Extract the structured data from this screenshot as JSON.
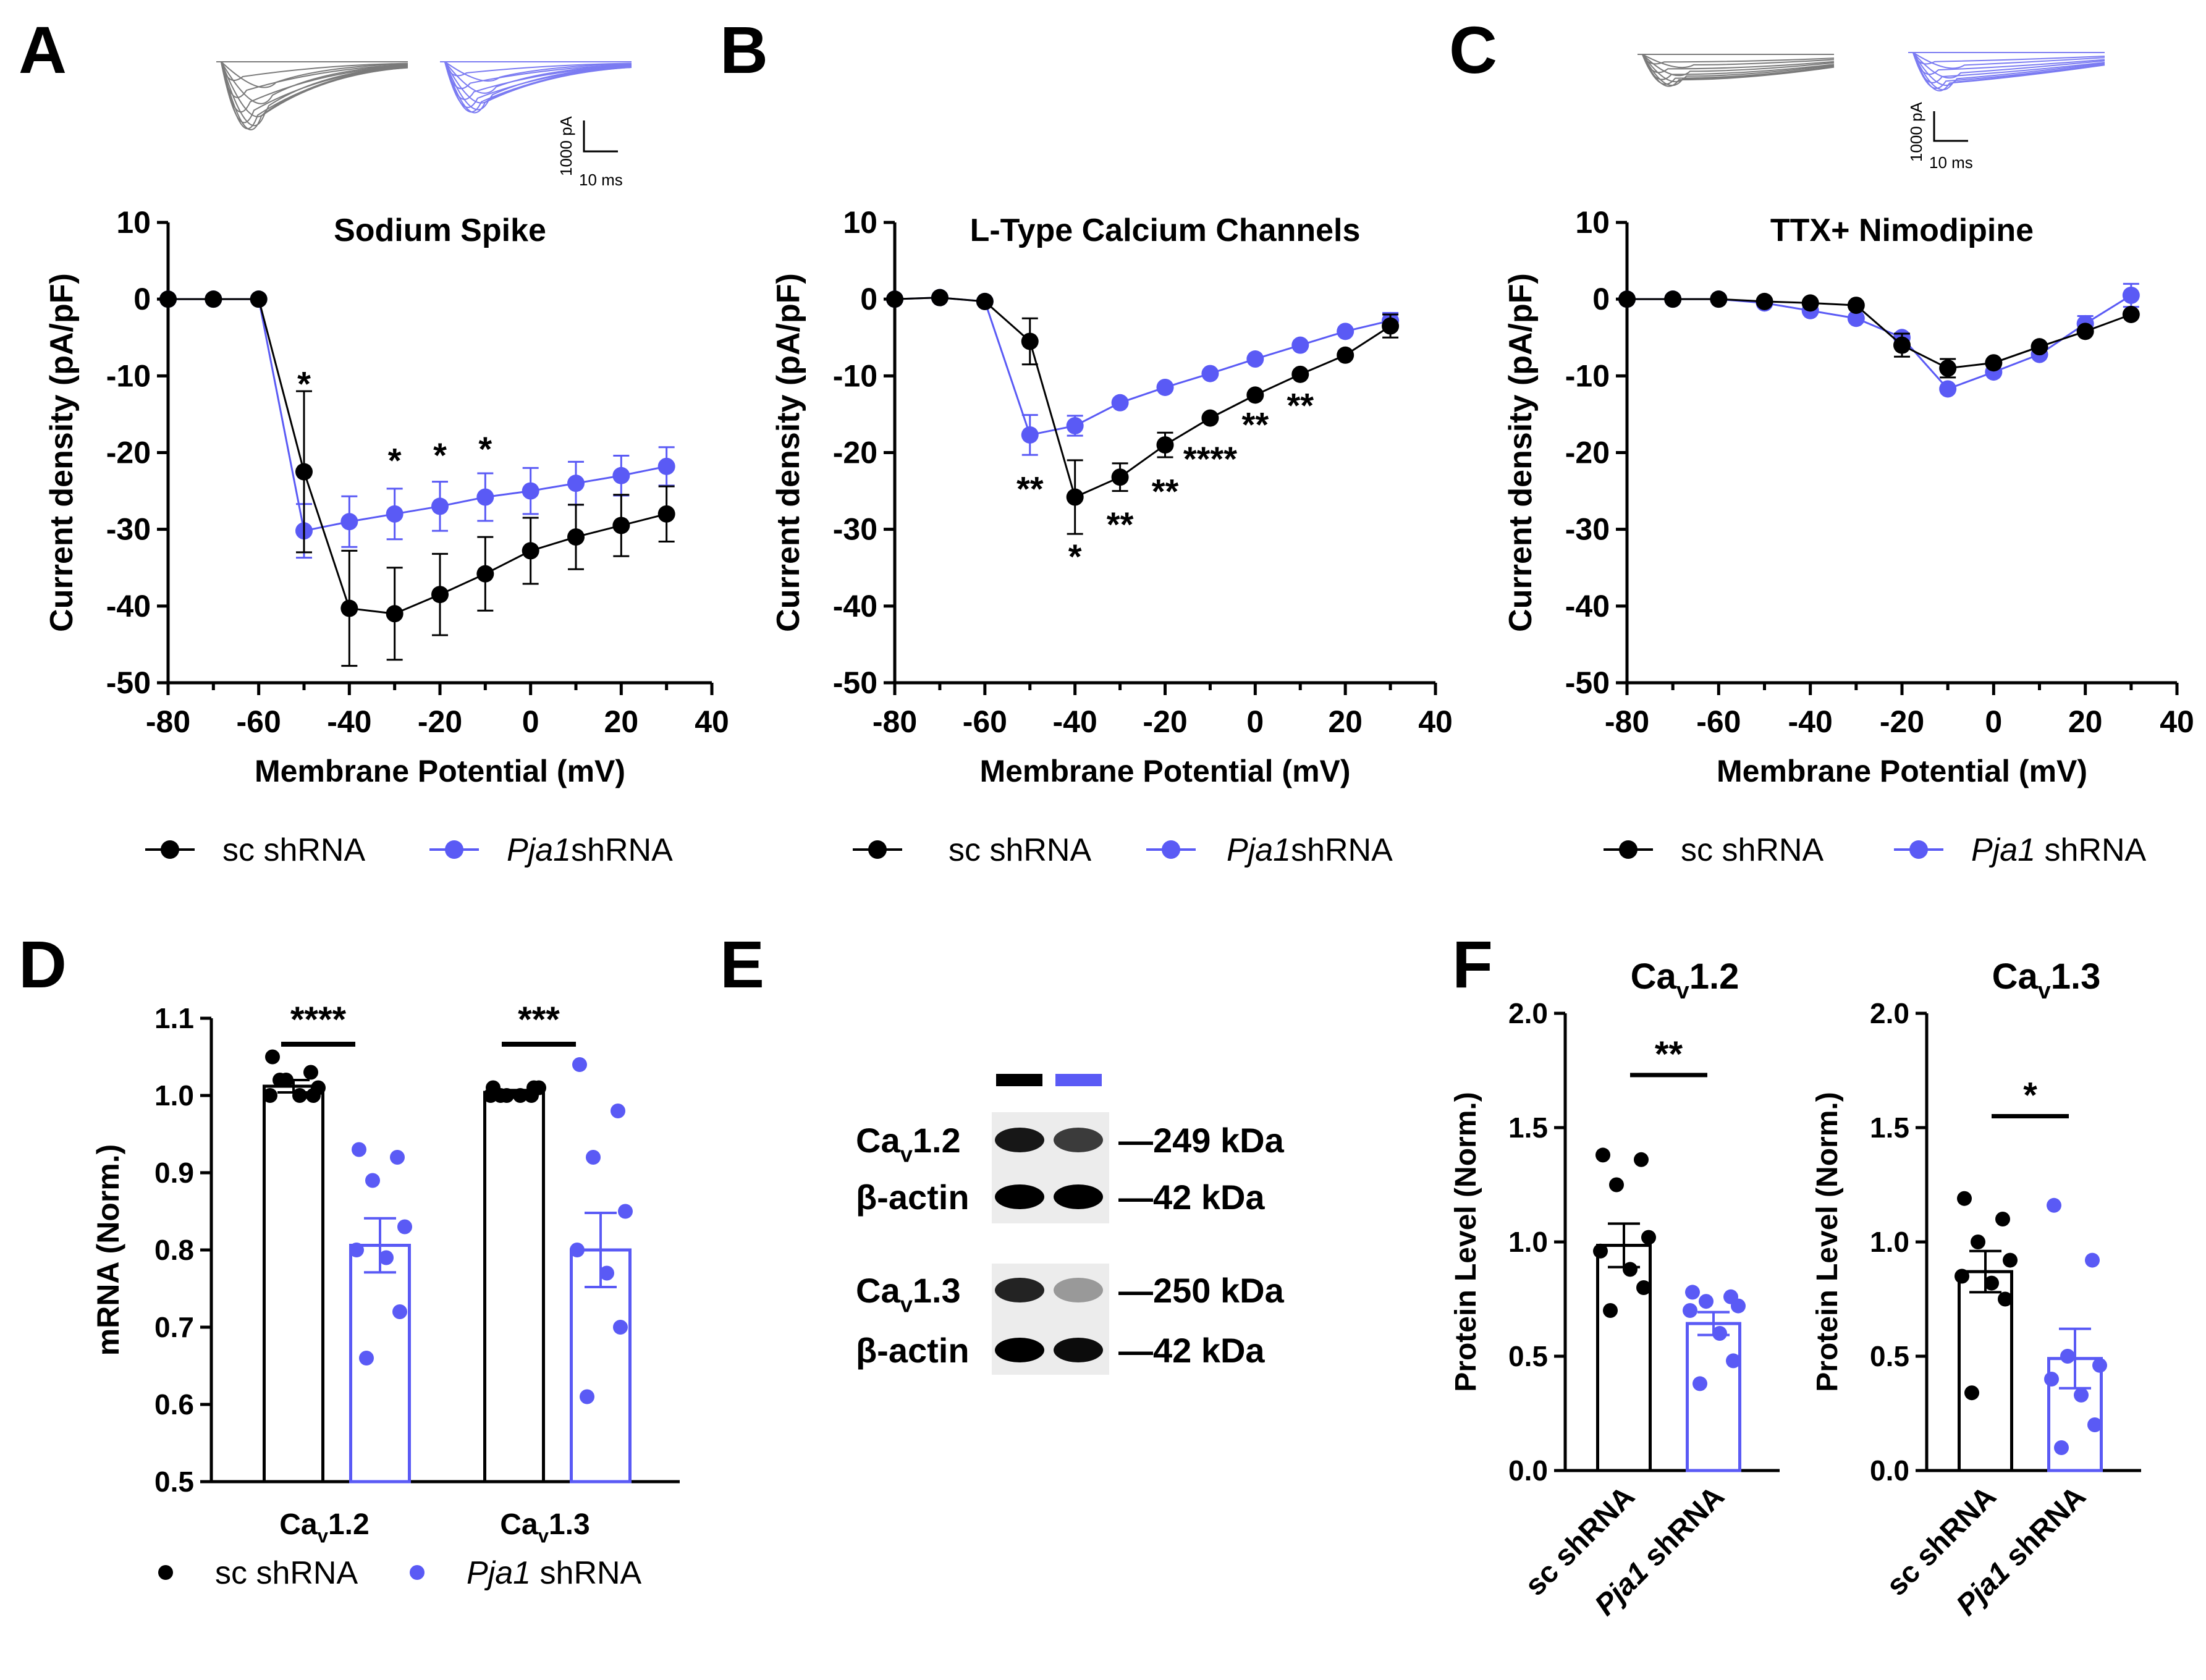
{
  "colors": {
    "sc": "#000000",
    "pja1": "#5a5af5",
    "trace_gray": "#7a7a7a",
    "trace_blue": "#7b7bf2"
  },
  "panel_letters": {
    "a": "A",
    "b": "B",
    "c": "C",
    "d": "D",
    "e": "E",
    "f": "F"
  },
  "traces_ab": {
    "scale_y": "1000 pA",
    "scale_x": "10 ms"
  },
  "traces_c": {
    "scale_y": "1000 pA",
    "scale_x": "10 ms"
  },
  "iv_common": {
    "x_ticks": [
      "-80",
      "-60",
      "-40",
      "-20",
      "0",
      "20",
      "40"
    ],
    "y_ticks": [
      "10",
      "0",
      "-10",
      "-20",
      "-30",
      "-40",
      "-50"
    ]
  },
  "legend_top": {
    "a": {
      "sc": "sc shRNA",
      "pja1_italic": "Pja1",
      "pja1_rest": "shRNA"
    },
    "b": {
      "sc": "sc shRNA",
      "pja1_italic": "Pja1",
      "pja1_rest": "shRNA"
    },
    "c": {
      "sc": "sc shRNA",
      "pja1_italic": "Pja1",
      "pja1_rest": " shRNA"
    }
  },
  "chart_data": [
    {
      "id": "A",
      "type": "line",
      "title": "Sodium Spike",
      "xlabel": "Membrane Potential (mV)",
      "ylabel": "Current density (pA/pF)",
      "xlim": [
        -80,
        40
      ],
      "ylim": [
        -50,
        10
      ],
      "series": [
        {
          "name": "sc shRNA",
          "x": [
            -80,
            -70,
            -60,
            -50,
            -40,
            -30,
            -20,
            -10,
            0,
            10,
            20,
            30
          ],
          "y": [
            0,
            0,
            0,
            -22.5,
            -40.3,
            -41,
            -38.5,
            -35.8,
            -32.8,
            -31,
            -29.5,
            -28
          ],
          "err": [
            0,
            0,
            0,
            10.5,
            7.5,
            6,
            5.3,
            4.8,
            4.3,
            4.2,
            4,
            3.6
          ]
        },
        {
          "name": "Pja1shRNA",
          "x": [
            -80,
            -70,
            -60,
            -50,
            -40,
            -30,
            -20,
            -10,
            0,
            10,
            20,
            30
          ],
          "y": [
            0,
            0,
            0,
            -30.2,
            -29,
            -28,
            -27,
            -25.8,
            -25,
            -24,
            -23,
            -21.8
          ],
          "err": [
            0,
            0,
            0,
            3.5,
            3.3,
            3.3,
            3.2,
            3.1,
            3,
            2.8,
            2.6,
            2.5
          ]
        }
      ],
      "annotations": [
        {
          "x": -50,
          "y": -10.5,
          "text": "*"
        },
        {
          "x": -30,
          "y": -20.5,
          "text": "*"
        },
        {
          "x": -20,
          "y": -19.8,
          "text": "*"
        },
        {
          "x": -10,
          "y": -19,
          "text": "*"
        }
      ]
    },
    {
      "id": "B",
      "type": "line",
      "title": "L-Type Calcium Channels",
      "xlabel": "Membrane Potential (mV)",
      "ylabel": "Current density (pA/pF)",
      "xlim": [
        -80,
        40
      ],
      "ylim": [
        -50,
        10
      ],
      "series": [
        {
          "name": "sc shRNA",
          "x": [
            -80,
            -70,
            -60,
            -50,
            -40,
            -30,
            -20,
            -10,
            0,
            10,
            20,
            30
          ],
          "y": [
            0,
            0.2,
            -0.3,
            -5.5,
            -25.8,
            -23.2,
            -19,
            -15.5,
            -12.5,
            -9.8,
            -7.3,
            -3.5
          ],
          "err": [
            0,
            0,
            0,
            3,
            4.8,
            1.8,
            1.6,
            0,
            0,
            0,
            0,
            1.5
          ]
        },
        {
          "name": "Pja1shRNA",
          "x": [
            -80,
            -70,
            -60,
            -50,
            -40,
            -30,
            -20,
            -10,
            0,
            10,
            20,
            30
          ],
          "y": [
            0,
            0.2,
            -0.3,
            -17.7,
            -16.5,
            -13.5,
            -11.5,
            -9.7,
            -7.8,
            -6,
            -4.2,
            -2.8
          ],
          "err": [
            0,
            0,
            0,
            2.6,
            1.3,
            0,
            0,
            0,
            0,
            0,
            0,
            1
          ]
        }
      ],
      "annotations": [
        {
          "x": -50,
          "y": -24.2,
          "text": "**"
        },
        {
          "x": -40,
          "y": -33,
          "text": "*"
        },
        {
          "x": -30,
          "y": -28.8,
          "text": "**"
        },
        {
          "x": -20,
          "y": -24.5,
          "text": "**"
        },
        {
          "x": -10,
          "y": -20.3,
          "text": "****"
        },
        {
          "x": 0,
          "y": -15.8,
          "text": "**"
        },
        {
          "x": 10,
          "y": -13.3,
          "text": "**"
        }
      ]
    },
    {
      "id": "C",
      "type": "line",
      "title": "TTX+ Nimodipine",
      "xlabel": "Membrane Potential (mV)",
      "ylabel": "Current density (pA/pF)",
      "xlim": [
        -80,
        40
      ],
      "ylim": [
        -50,
        10
      ],
      "series": [
        {
          "name": "sc shRNA",
          "x": [
            -80,
            -70,
            -60,
            -50,
            -40,
            -30,
            -20,
            -10,
            0,
            10,
            20,
            30
          ],
          "y": [
            0,
            0,
            0,
            -0.3,
            -0.5,
            -0.8,
            -6,
            -9,
            -8.3,
            -6.2,
            -4.2,
            -2
          ],
          "err": [
            0,
            0,
            0,
            0,
            0,
            0,
            1.5,
            1.2,
            0,
            0,
            0,
            0
          ]
        },
        {
          "name": "Pja1 shRNA",
          "x": [
            -80,
            -70,
            -60,
            -50,
            -40,
            -30,
            -20,
            -10,
            0,
            10,
            20,
            30
          ],
          "y": [
            0,
            0,
            0,
            -0.5,
            -1.5,
            -2.5,
            -5,
            -11.7,
            -9.5,
            -7.2,
            -3.2,
            0.5
          ],
          "err": [
            0,
            0,
            0,
            0,
            0,
            0,
            0,
            0,
            0,
            0,
            1,
            1.5
          ]
        }
      ],
      "annotations": []
    },
    {
      "id": "D",
      "type": "bar",
      "ylabel": "mRNA (Norm.)",
      "ylim": [
        0.5,
        1.1
      ],
      "y_ticks": [
        "0.5",
        "0.6",
        "0.7",
        "0.8",
        "0.9",
        "1.0",
        "1.1"
      ],
      "groups": [
        {
          "label_main": "Ca",
          "label_sub": "v",
          "label_tail": "1.2",
          "sig": "****",
          "bars": [
            {
              "name": "sc shRNA",
              "mean": 1.012,
              "sem": 0.008,
              "points": [
                1.05,
                1.03,
                1.02,
                1.01,
                1.0,
                1.0,
                1.0,
                1.02
              ]
            },
            {
              "name": "Pja1 shRNA",
              "mean": 0.806,
              "sem": 0.035,
              "points": [
                0.93,
                0.92,
                0.89,
                0.83,
                0.8,
                0.79,
                0.72,
                0.66
              ]
            }
          ]
        },
        {
          "label_main": "Ca",
          "label_sub": "v",
          "label_tail": "1.3",
          "sig": "***",
          "bars": [
            {
              "name": "sc shRNA",
              "mean": 1.004,
              "sem": 0.003,
              "points": [
                1.01,
                1.0,
                1.0,
                1.01,
                1.0,
                1.0,
                1.01,
                1.0
              ]
            },
            {
              "name": "Pja1 shRNA",
              "mean": 0.8,
              "sem": 0.048,
              "points": [
                1.04,
                0.98,
                0.92,
                0.85,
                0.8,
                0.77,
                0.7,
                0.61
              ]
            }
          ]
        }
      ],
      "legend": {
        "sc": "sc shRNA",
        "pja1_italic": "Pja1",
        "pja1_rest": " shRNA"
      }
    },
    {
      "id": "F1",
      "type": "bar",
      "title_main": "Ca",
      "title_sub": "v",
      "title_tail": "1.2",
      "ylabel": "Protein Level (Norm.)",
      "ylim": [
        0,
        2
      ],
      "y_ticks": [
        "0.0",
        "0.5",
        "1.0",
        "1.5",
        "2.0"
      ],
      "sig": "**",
      "bars": [
        {
          "name": "sc shRNA",
          "mean": 0.985,
          "sem": 0.095,
          "points": [
            1.38,
            1.36,
            1.25,
            1.02,
            0.96,
            0.88,
            0.8,
            0.7
          ]
        },
        {
          "name": "Pja1 shRNA",
          "mean": 0.643,
          "sem": 0.05,
          "points": [
            0.78,
            0.76,
            0.74,
            0.72,
            0.7,
            0.6,
            0.48,
            0.38
          ]
        }
      ],
      "xlabels": {
        "sc": "sc shRNA",
        "pja1_italic": "Pja1",
        "pja1_rest": " shRNA"
      }
    },
    {
      "id": "F2",
      "type": "bar",
      "title_main": "Ca",
      "title_sub": "v",
      "title_tail": "1.3",
      "ylabel": "Protein Level (Norm.)",
      "ylim": [
        0,
        2
      ],
      "y_ticks": [
        "0.0",
        "0.5",
        "1.0",
        "1.5",
        "2.0"
      ],
      "sig": "*",
      "bars": [
        {
          "name": "sc shRNA",
          "mean": 0.87,
          "sem": 0.09,
          "points": [
            1.19,
            1.1,
            1.0,
            0.92,
            0.85,
            0.82,
            0.75,
            0.34
          ]
        },
        {
          "name": "Pja1 shRNA",
          "mean": 0.49,
          "sem": 0.13,
          "points": [
            1.16,
            0.92,
            0.5,
            0.46,
            0.4,
            0.33,
            0.2,
            0.1
          ]
        }
      ],
      "xlabels": {
        "sc": "sc shRNA",
        "pja1_italic": "Pja1",
        "pja1_rest": " shRNA"
      }
    }
  ],
  "blot": {
    "rows": [
      {
        "label_main": "Ca",
        "label_sub": "v",
        "label_tail": "1.2",
        "size": "—249 kDa"
      },
      {
        "label_main": "β-actin",
        "label_sub": "",
        "label_tail": "",
        "size": "—42 kDa"
      },
      {
        "label_main": "Ca",
        "label_sub": "v",
        "label_tail": "1.3",
        "size": "—250 kDa"
      },
      {
        "label_main": "β-actin",
        "label_sub": "",
        "label_tail": "",
        "size": "—42 kDa"
      }
    ]
  }
}
